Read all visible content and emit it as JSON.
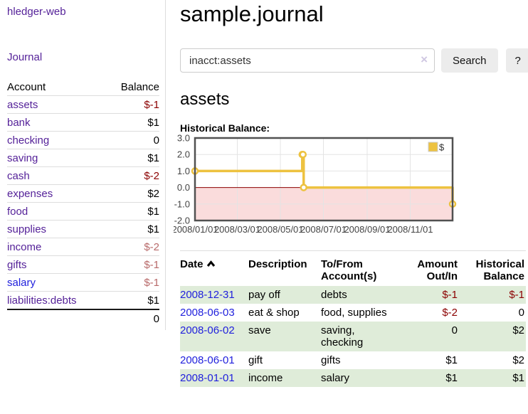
{
  "app": {
    "brand": "hledger-web"
  },
  "sidebar": {
    "journal_link": "Journal",
    "accounts_table": {
      "headers": {
        "account": "Account",
        "balance": "Balance"
      },
      "rows": [
        {
          "account": "assets",
          "balance": "$-1"
        },
        {
          "account": "bank",
          "balance": "$1"
        },
        {
          "account": "checking",
          "balance": "0"
        },
        {
          "account": "saving",
          "balance": "$1"
        },
        {
          "account": "cash",
          "balance": "$-2"
        },
        {
          "account": "expenses",
          "balance": "$2"
        },
        {
          "account": "food",
          "balance": "$1"
        },
        {
          "account": "supplies",
          "balance": "$1"
        },
        {
          "account": "income",
          "balance": "$-2"
        },
        {
          "account": "gifts",
          "balance": "$-1"
        },
        {
          "account": "salary",
          "balance": "$-1"
        },
        {
          "account": "liabilities:debts",
          "balance": "$1"
        }
      ],
      "total": "0"
    }
  },
  "header": {
    "title": "sample.journal"
  },
  "search": {
    "value": "inacct:assets",
    "clear_icon": "×",
    "search_button": "Search",
    "help_button": "?"
  },
  "account_view": {
    "heading": "assets",
    "chart_title": "Historical Balance:"
  },
  "chart_data": {
    "type": "line",
    "step": true,
    "title": "Historical Balance",
    "xlabel": "",
    "ylabel": "",
    "xlim": [
      0,
      365
    ],
    "ylim": [
      -2,
      3
    ],
    "grid": true,
    "legend_position": "top-right",
    "series": [
      {
        "name": "$",
        "points": [
          {
            "date": "2008-01-01",
            "day": 0,
            "value": 1
          },
          {
            "date": "2008-06-01",
            "day": 152,
            "value": 2
          },
          {
            "date": "2008-06-02",
            "day": 153,
            "value": 2
          },
          {
            "date": "2008-06-03",
            "day": 154,
            "value": 0
          },
          {
            "date": "2008-12-31",
            "day": 365,
            "value": -1
          }
        ]
      }
    ],
    "yticks": [
      3.0,
      2.0,
      1.0,
      0.0,
      -1.0,
      -2.0
    ],
    "xticks": [
      {
        "day": 0,
        "label": "2008/01/01"
      },
      {
        "day": 60,
        "label": "2008/03/01"
      },
      {
        "day": 121,
        "label": "2008/05/01"
      },
      {
        "day": 182,
        "label": "2008/07/01"
      },
      {
        "day": 244,
        "label": "2008/09/01"
      },
      {
        "day": 305,
        "label": "2008/11/01"
      }
    ],
    "colors": {
      "line": "#edc240",
      "marker_fill": "#ffffff",
      "negative_fill": "#fadcdc",
      "zero_line": "#8b0000",
      "grid": "#e4e4e4",
      "border": "#515151",
      "tick_text": "#444444"
    }
  },
  "register": {
    "headers": {
      "date": "Date",
      "description": "Description",
      "accounts": "To/From Account(s)",
      "amount": "Amount Out/In",
      "balance": "Historical Balance"
    },
    "rows": [
      {
        "date": "2008-12-31",
        "description": "pay off",
        "accounts": "debts",
        "amount": "$-1",
        "balance": "$-1"
      },
      {
        "date": "2008-06-03",
        "description": "eat & shop",
        "accounts": "food, supplies",
        "amount": "$-2",
        "balance": "0"
      },
      {
        "date": "2008-06-02",
        "description": "save",
        "accounts": "saving, checking",
        "amount": "0",
        "balance": "$2"
      },
      {
        "date": "2008-06-01",
        "description": "gift",
        "accounts": "gifts",
        "amount": "$1",
        "balance": "$2"
      },
      {
        "date": "2008-01-01",
        "description": "income",
        "accounts": "salary",
        "amount": "$1",
        "balance": "$1"
      }
    ]
  },
  "colors": {
    "link_purple": "#552299",
    "link_blue": "#2121dd",
    "negative_strong": "#8b0000",
    "negative_soft": "#b86a6a",
    "row_stripe_green": "#dfecd9",
    "accent_gold": "#edc240"
  }
}
